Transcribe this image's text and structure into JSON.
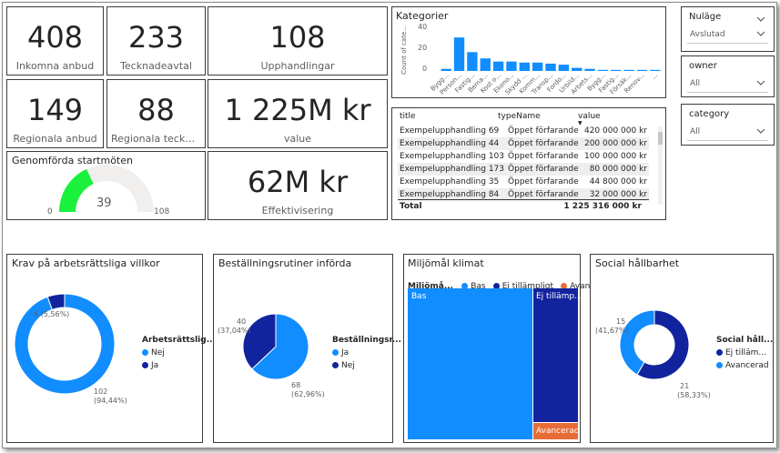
{
  "colors": {
    "accent": "#118DFF",
    "dark_blue": "#12239E",
    "orange": "#E66C37",
    "green": "#1AF13A",
    "gauge_bg": "#F0EFED"
  },
  "kpis": {
    "inkomna": {
      "value": "408",
      "label": "Inkomna anbud"
    },
    "tecknade": {
      "value": "233",
      "label": "Tecknadeavtal"
    },
    "upphandlingar": {
      "value": "108",
      "label": "Upphandlingar"
    },
    "regionala_anbud": {
      "value": "149",
      "label": "Regionala anbud"
    },
    "regionala_tecknade": {
      "value": "88",
      "label": "Regionala tecknade..."
    },
    "value": {
      "value": "1 225M kr",
      "label": "value"
    },
    "effektivisering": {
      "value": "62M kr",
      "label": "Effektivisering"
    }
  },
  "gauge": {
    "title": "Genomförda startmöten",
    "value": 39,
    "min": 0,
    "max": 108,
    "value_label": "39",
    "min_label": "0",
    "max_label": "108"
  },
  "kategorier": {
    "title": "Kategorier",
    "ylabel": "Count of cate...",
    "ticks": [
      "40",
      "20",
      "0"
    ],
    "categories": [
      "Bygg...",
      "Person...",
      "Fastig...",
      "Bema...",
      "Kost o...",
      "Ekono...",
      "Skydd ...",
      "Komm...",
      "Transp...",
      "Fordo...",
      "Urbild...",
      "Arbets...",
      "Bygg...",
      "Fastig...",
      "Försäk...",
      "Renov...",
      "..."
    ]
  },
  "chart_data": [
    {
      "type": "bar",
      "title": "Kategorier",
      "ylabel": "Count of cate...",
      "ylim": [
        0,
        40
      ],
      "categories": [
        "Bygg...",
        "Person...",
        "Fastig...",
        "Bema...",
        "Kost o...",
        "Ekono...",
        "Skydd ...",
        "Komm...",
        "Transp...",
        "Fordo...",
        "Urbild...",
        "Arbets...",
        "Bygg...",
        "Fastig...",
        "Försäk...",
        "Renov...",
        "..."
      ],
      "values": [
        2,
        32,
        18,
        12,
        9,
        9,
        8,
        8,
        7,
        6,
        3,
        2,
        1,
        1,
        1,
        1,
        1
      ]
    },
    {
      "type": "pie",
      "title": "Krav på arbetsrättsliga villkor",
      "legend_title": "Arbetsrättslig...",
      "labels": [
        "Nej",
        "Ja"
      ],
      "values": [
        102,
        6
      ]
    },
    {
      "type": "pie",
      "title": "Beställningsrutiner införda",
      "legend_title": "Beställningsr...",
      "labels": [
        "Ja",
        "Nej"
      ],
      "values": [
        68,
        40
      ]
    },
    {
      "type": "pie",
      "title": "Social hållbarhet",
      "legend_title": "Social håll...",
      "labels": [
        "Ej tilläm...",
        "Avancerad"
      ],
      "values": [
        21,
        15
      ]
    }
  ],
  "slicers": [
    {
      "title": "Nuläge",
      "value": "Avslutad"
    },
    {
      "title": "owner",
      "value": "All"
    },
    {
      "title": "category",
      "value": "All"
    }
  ],
  "table": {
    "headers": [
      "title",
      "typeName",
      "value"
    ],
    "rows": [
      [
        "Exempelupphandling 69",
        "Öppet förfarande",
        "420 000 000 kr"
      ],
      [
        "Exempelupphandling 44",
        "Öppet förfarande",
        "200 000 000 kr"
      ],
      [
        "Exempelupphandling 103",
        "Öppet förfarande",
        "100 000 000 kr"
      ],
      [
        "Exempelupphandling 173",
        "Öppet förfarande",
        "80 000 000 kr"
      ],
      [
        "Exempelupphandling 35",
        "Öppet förfarande",
        "44 800 000 kr"
      ],
      [
        "Exempelupphandling 84",
        "Öppet förfarande",
        "32 000 000 kr"
      ]
    ],
    "total_label": "Total",
    "total_value": "1 225 316 000 kr"
  },
  "donut_krav": {
    "title": "Krav på arbetsrättsliga villkor",
    "legend_title": "Arbetsrättslig...",
    "legend": [
      "Nej",
      "Ja"
    ],
    "label_small": "6 (5,56%)",
    "label_big_1": "102",
    "label_big_2": "(94,44%)"
  },
  "donut_best": {
    "title": "Beställningsrutiner införda",
    "legend_title": "Beställningsr...",
    "legend": [
      "Ja",
      "Nej"
    ],
    "label_small_1": "40",
    "label_small_2": "(37,04%)",
    "label_big_1": "68",
    "label_big_2": "(62,96%)"
  },
  "treemap": {
    "title": "Miljömål klimat",
    "legend_title": "Miljömå...",
    "legend": [
      "Bas",
      "Ej tillämpligt",
      "Avancerad"
    ],
    "tiles": [
      "Bas",
      "Ej tillämp...",
      "Avancerad"
    ]
  },
  "donut_social": {
    "title": "Social hållbarhet",
    "legend_title": "Social håll...",
    "legend": [
      "Ej tilläm...",
      "Avancerad"
    ],
    "label_small_1": "15",
    "label_small_2": "(41,67%)",
    "label_big_1": "21",
    "label_big_2": "(58,33%)"
  }
}
